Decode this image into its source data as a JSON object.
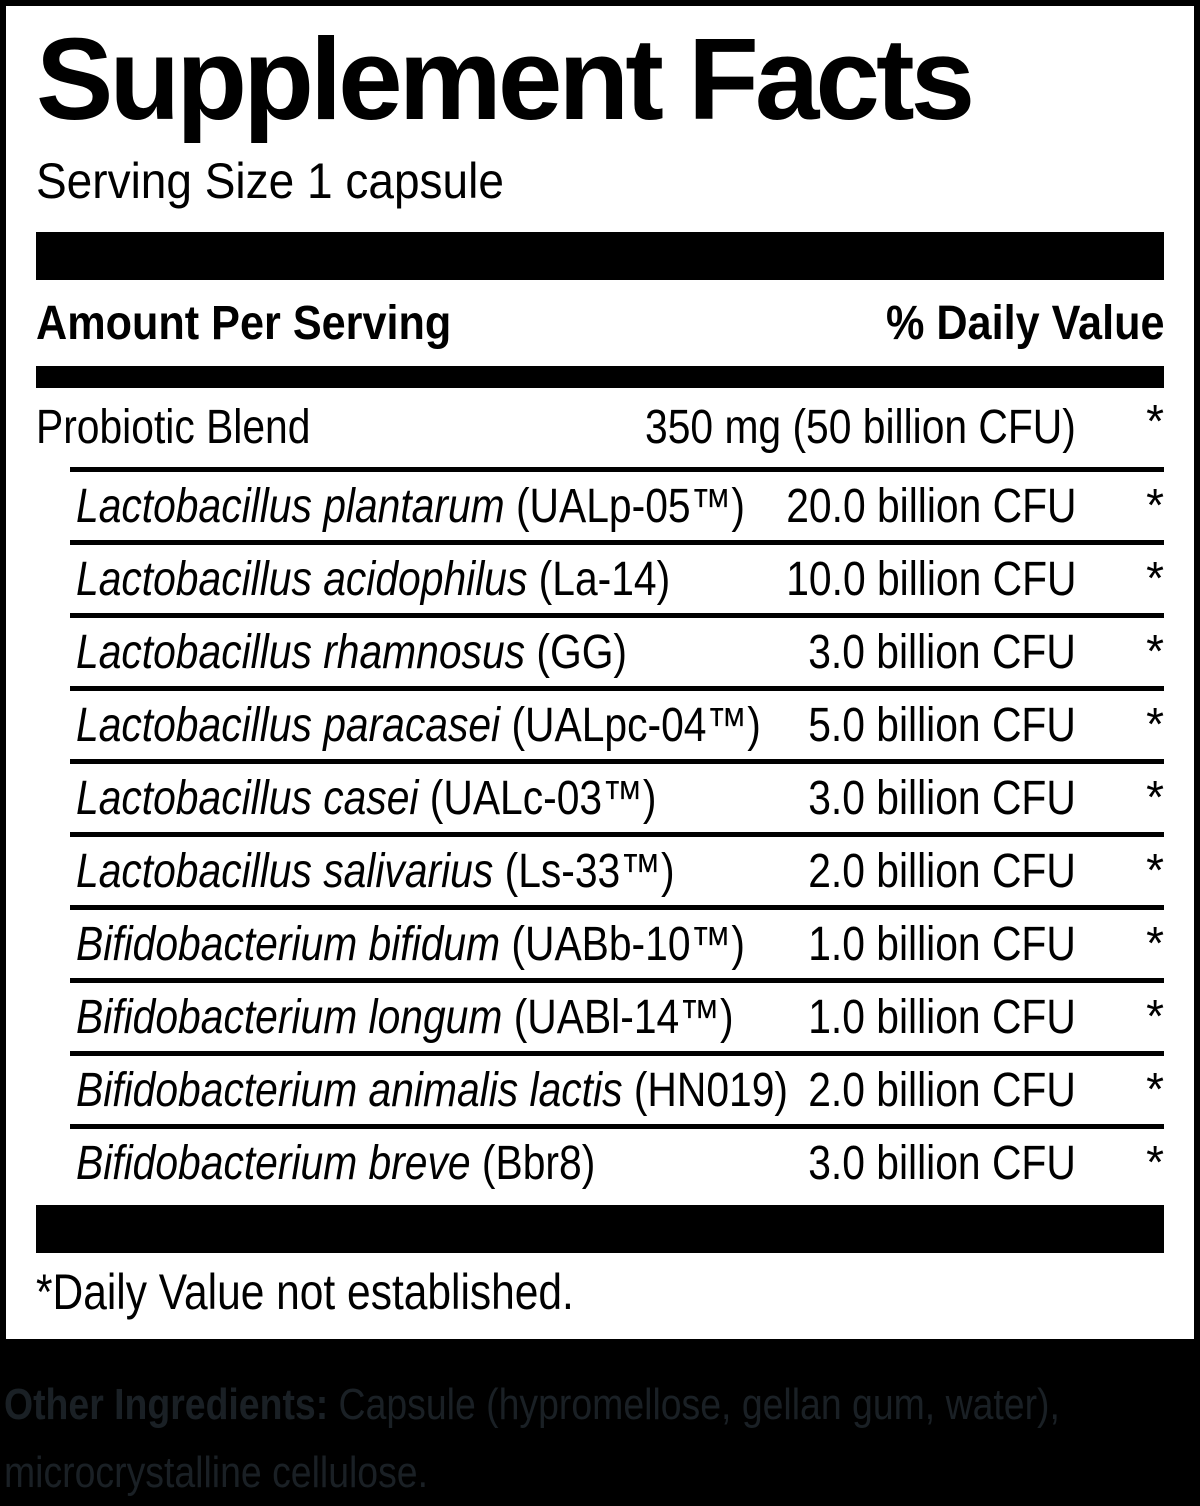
{
  "title": "Supplement Facts",
  "serving_size": "Serving Size 1 capsule",
  "table": {
    "header": {
      "amount_per_serving": "Amount Per Serving",
      "daily_value": "% Daily Value"
    },
    "blend": {
      "name": "Probiotic Blend",
      "amount": "350 mg (50 billion CFU)",
      "dv": "*"
    },
    "rows": [
      {
        "species": "Lactobacillus plantarum",
        "strain": " (UALp-05™)",
        "amount": "20.0 billion CFU",
        "dv": "*"
      },
      {
        "species": "Lactobacillus acidophilus",
        "strain": " (La-14)",
        "amount": "10.0 billion CFU",
        "dv": "*"
      },
      {
        "species": "Lactobacillus rhamnosus",
        "strain": " (GG)",
        "amount": "3.0 billion CFU",
        "dv": "*"
      },
      {
        "species": "Lactobacillus paracasei",
        "strain": " (UALpc-04™)",
        "amount": "5.0 billion CFU",
        "dv": "*"
      },
      {
        "species": "Lactobacillus casei",
        "strain": " (UALc-03™)",
        "amount": "3.0 billion CFU",
        "dv": "*"
      },
      {
        "species": "Lactobacillus salivarius",
        "strain": " (Ls-33™)",
        "amount": "2.0 billion CFU",
        "dv": "*"
      },
      {
        "species": "Bifidobacterium bifidum",
        "strain": " (UABb-10™)",
        "amount": "1.0 billion CFU",
        "dv": "*"
      },
      {
        "species": "Bifidobacterium longum",
        "strain": " (UABl-14™)",
        "amount": "1.0 billion CFU",
        "dv": "*"
      },
      {
        "species": "Bifidobacterium animalis lactis",
        "strain": " (HN019)",
        "amount": "2.0 billion CFU",
        "dv": "*"
      },
      {
        "species": "Bifidobacterium breve",
        "strain": " (Bbr8)",
        "amount": "3.0 billion CFU",
        "dv": "*"
      }
    ]
  },
  "footnote": "*Daily Value not established.",
  "other_ingredients": {
    "label": "Other Ingredients:",
    "line1_rest": " Capsule (hypromellose, gellan gum, water),",
    "line2": "microcrystalline cellulose."
  },
  "colors": {
    "ink": "#000000",
    "paper": "#ffffff",
    "footer_bg": "#000000",
    "footer_text": "#1a2025"
  }
}
